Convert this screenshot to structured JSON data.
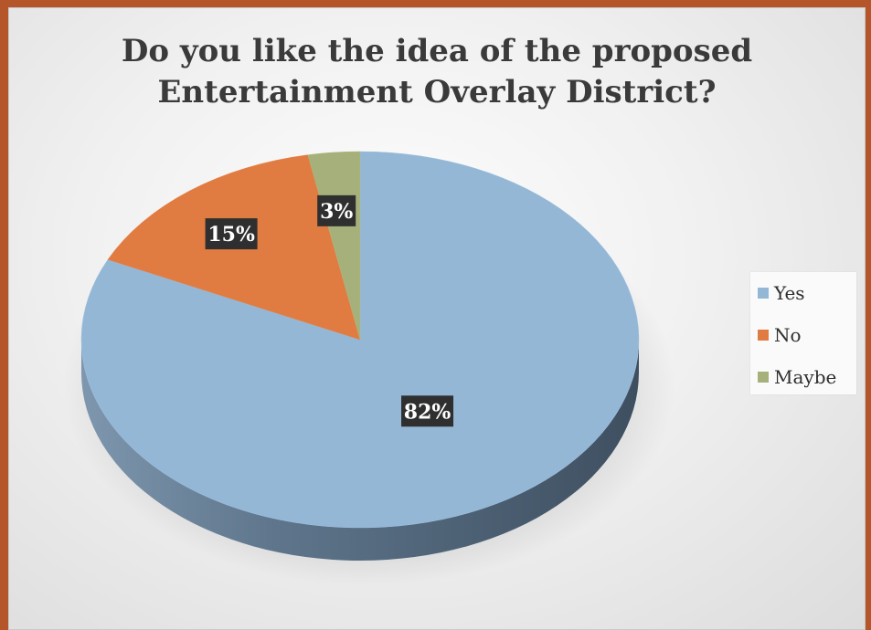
{
  "chart_data": {
    "type": "pie",
    "title_lines": [
      "Do you like the idea of the proposed",
      "Entertainment Overlay District?"
    ],
    "categories": [
      "Yes",
      "No",
      "Maybe"
    ],
    "values": [
      82,
      15,
      3
    ],
    "data_labels": [
      "82%",
      "15%",
      "3%"
    ],
    "colors": [
      "#95b7d6",
      "#e07b42",
      "#a6b07a"
    ],
    "legend_position": "right"
  }
}
